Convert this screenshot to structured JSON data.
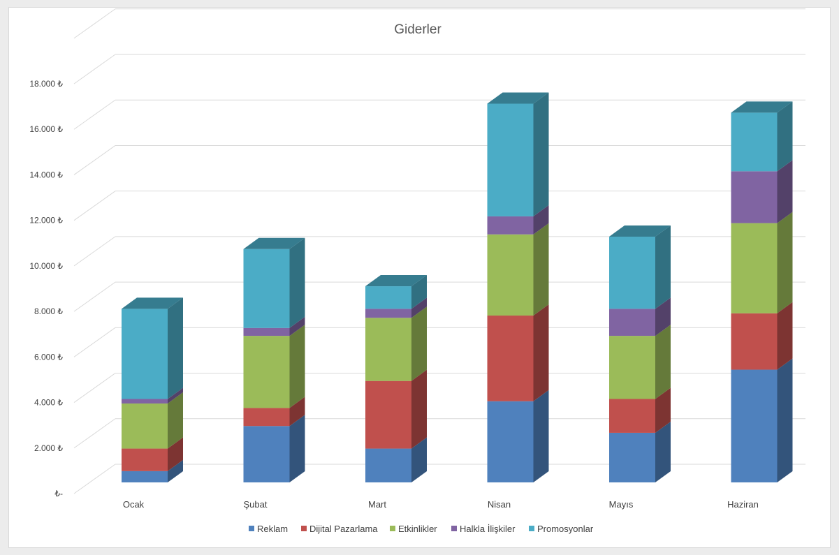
{
  "chart_data": {
    "type": "bar",
    "stacked": true,
    "three_d": true,
    "title": "Giderler",
    "categories": [
      "Ocak",
      "Şubat",
      "Mart",
      "Nisan",
      "Mayıs",
      "Haziran"
    ],
    "series": [
      {
        "name": "Reklam",
        "color": "#4f81bd",
        "values": [
          500,
          2500,
          1500,
          3600,
          2200,
          5000
        ]
      },
      {
        "name": "Dijital Pazarlama",
        "color": "#c0504d",
        "values": [
          1000,
          800,
          3000,
          3800,
          1500,
          2500
        ]
      },
      {
        "name": "Etkinlikler",
        "color": "#9bbb59",
        "values": [
          2000,
          3200,
          2800,
          3600,
          2800,
          4000
        ]
      },
      {
        "name": "Halkla İlişkiler",
        "color": "#8064a2",
        "values": [
          200,
          350,
          400,
          800,
          1200,
          2300
        ]
      },
      {
        "name": "Promosyonlar",
        "color": "#4bacc6",
        "values": [
          4000,
          3500,
          1000,
          5000,
          3200,
          2600
        ]
      }
    ],
    "ylim": [
      0,
      18000
    ],
    "yticks": [
      "₺-",
      "2.000 ₺",
      "4.000 ₺",
      "6.000 ₺",
      "8.000 ₺",
      "10.000 ₺",
      "12.000 ₺",
      "14.000 ₺",
      "16.000 ₺",
      "18.000 ₺"
    ],
    "ytick_values": [
      0,
      2000,
      4000,
      6000,
      8000,
      10000,
      12000,
      14000,
      16000,
      18000
    ],
    "grid": true,
    "legend": "bottom"
  }
}
